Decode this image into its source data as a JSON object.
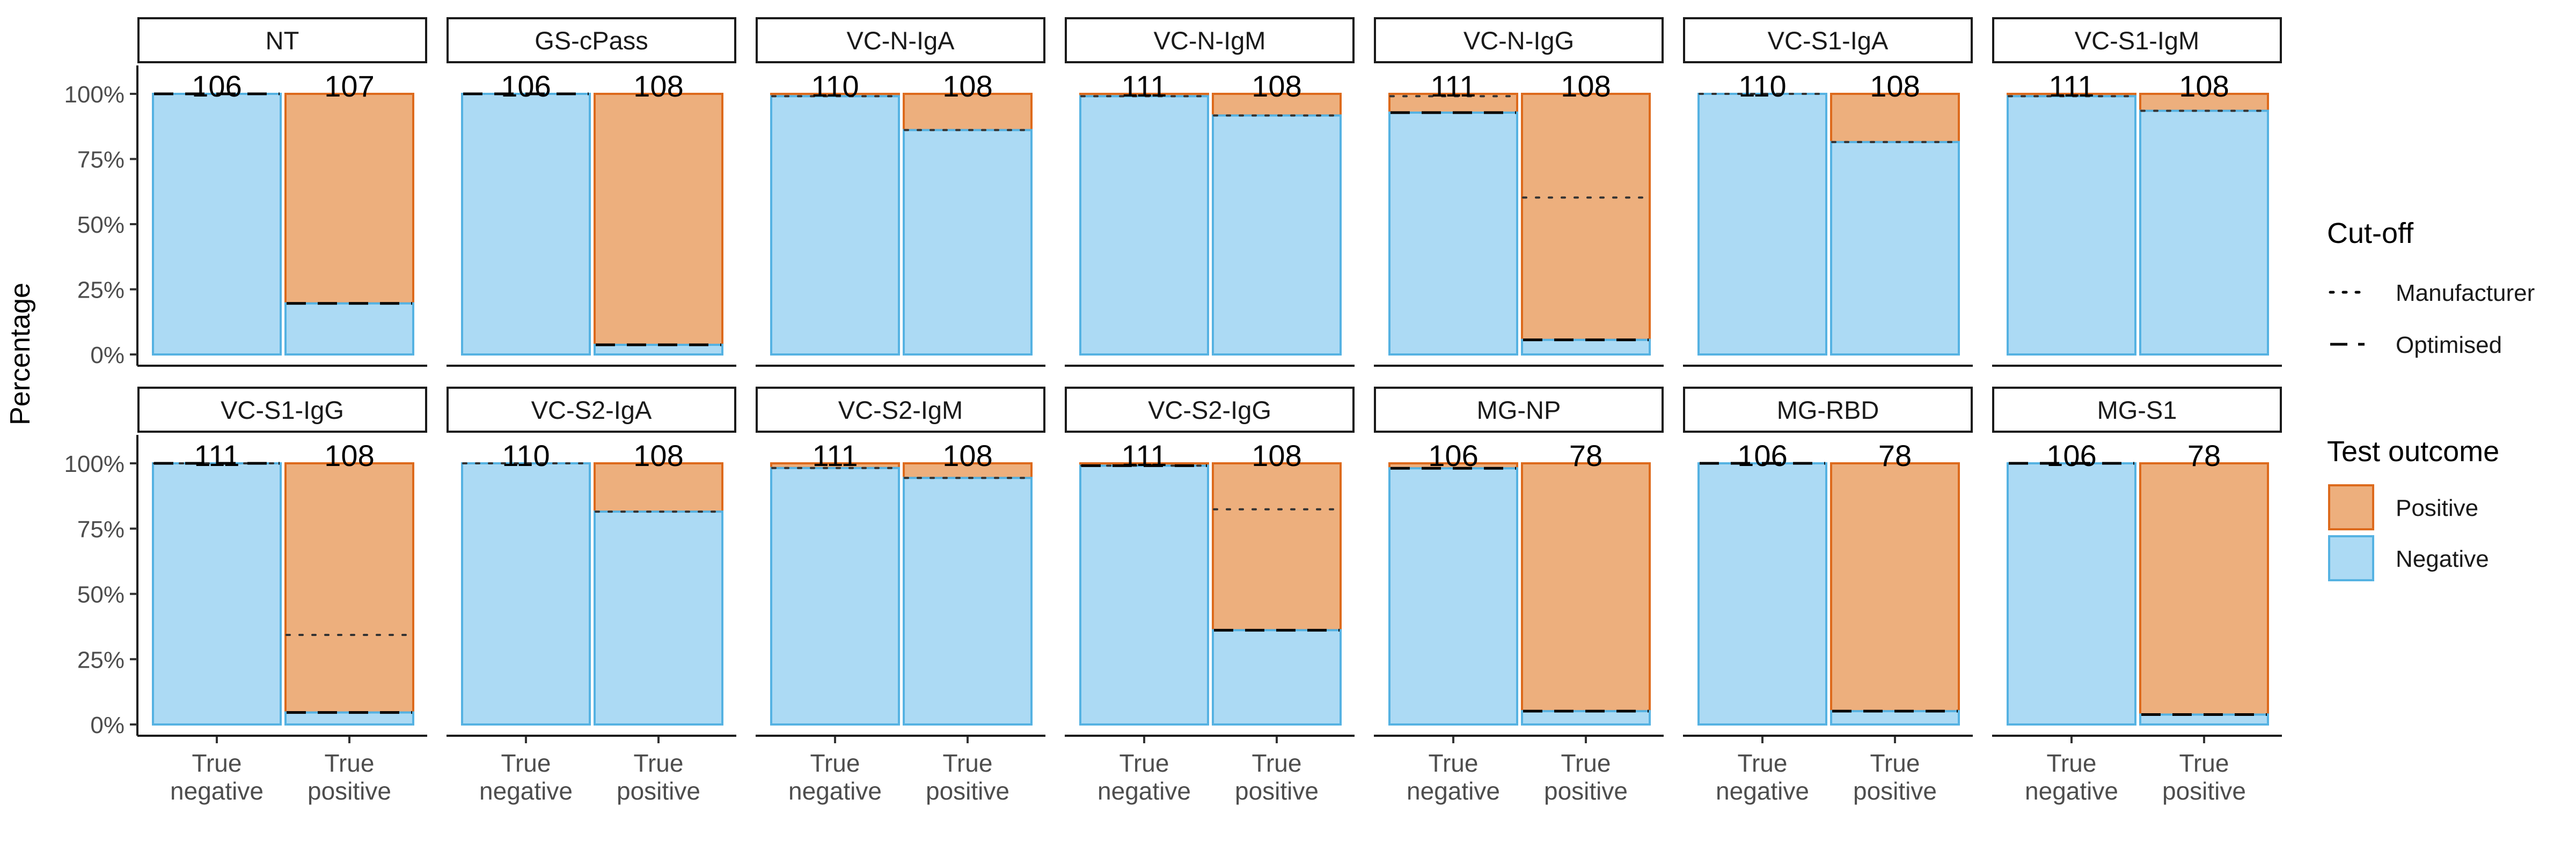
{
  "chart_data": {
    "type": "bar",
    "subtype": "stacked-percent-faceted",
    "ylabel": "Percentage",
    "y_ticks": [
      "0%",
      "25%",
      "50%",
      "75%",
      "100%"
    ],
    "ylim": [
      0,
      100
    ],
    "categories": [
      "True\nnegative",
      "True\npositive"
    ],
    "legend": {
      "position": "right",
      "cutoff_title": "Cut-off",
      "cutoff_items": [
        {
          "label": "Manufacturer",
          "style": "dotted"
        },
        {
          "label": "Optimised",
          "style": "dashed"
        }
      ],
      "outcome_title": "Test outcome",
      "outcome_items": [
        {
          "label": "Positive",
          "fill": "#edaf7d",
          "stroke": "#dd6a1c"
        },
        {
          "label": "Negative",
          "fill": "#acdaf4",
          "stroke": "#55b2e2"
        }
      ]
    },
    "panels": [
      {
        "name": "NT",
        "bars": [
          {
            "n": "106",
            "negative_pct": 100,
            "manufacturer": null,
            "optimised": 100
          },
          {
            "n": "107",
            "negative_pct": 19.6,
            "manufacturer": null,
            "optimised": 19.6
          }
        ]
      },
      {
        "name": "GS-cPass",
        "bars": [
          {
            "n": "106",
            "negative_pct": 100,
            "manufacturer": null,
            "optimised": 100
          },
          {
            "n": "108",
            "negative_pct": 3.7,
            "manufacturer": null,
            "optimised": 3.7
          }
        ]
      },
      {
        "name": "VC-N-IgA",
        "bars": [
          {
            "n": "110",
            "negative_pct": 99.1,
            "manufacturer": 99.1,
            "optimised": null
          },
          {
            "n": "108",
            "negative_pct": 86.1,
            "manufacturer": 86.1,
            "optimised": null
          }
        ]
      },
      {
        "name": "VC-N-IgM",
        "bars": [
          {
            "n": "111",
            "negative_pct": 99.1,
            "manufacturer": 99.1,
            "optimised": null
          },
          {
            "n": "108",
            "negative_pct": 91.7,
            "manufacturer": 91.7,
            "optimised": null
          }
        ]
      },
      {
        "name": "VC-N-IgG",
        "bars": [
          {
            "n": "111",
            "negative_pct": 92.8,
            "manufacturer": 99.1,
            "optimised": 92.8
          },
          {
            "n": "108",
            "negative_pct": 5.6,
            "manufacturer": 60.2,
            "optimised": 5.6
          }
        ]
      },
      {
        "name": "VC-S1-IgA",
        "bars": [
          {
            "n": "110",
            "negative_pct": 100,
            "manufacturer": 100,
            "optimised": null
          },
          {
            "n": "108",
            "negative_pct": 81.5,
            "manufacturer": 81.5,
            "optimised": null
          }
        ]
      },
      {
        "name": "VC-S1-IgM",
        "bars": [
          {
            "n": "111",
            "negative_pct": 99.1,
            "manufacturer": 99.1,
            "optimised": null
          },
          {
            "n": "108",
            "negative_pct": 93.5,
            "manufacturer": 93.5,
            "optimised": null
          }
        ]
      },
      {
        "name": "VC-S1-IgG",
        "bars": [
          {
            "n": "111",
            "negative_pct": 100,
            "manufacturer": 100,
            "optimised": 100
          },
          {
            "n": "108",
            "negative_pct": 4.6,
            "manufacturer": 34.3,
            "optimised": 4.6
          }
        ]
      },
      {
        "name": "VC-S2-IgA",
        "bars": [
          {
            "n": "110",
            "negative_pct": 100,
            "manufacturer": 100,
            "optimised": null
          },
          {
            "n": "108",
            "negative_pct": 81.5,
            "manufacturer": 81.5,
            "optimised": null
          }
        ]
      },
      {
        "name": "VC-S2-IgM",
        "bars": [
          {
            "n": "111",
            "negative_pct": 98.2,
            "manufacturer": 98.2,
            "optimised": null
          },
          {
            "n": "108",
            "negative_pct": 94.4,
            "manufacturer": 94.4,
            "optimised": null
          }
        ]
      },
      {
        "name": "VC-S2-IgG",
        "bars": [
          {
            "n": "111",
            "negative_pct": 99.1,
            "manufacturer": 99.1,
            "optimised": 99.1
          },
          {
            "n": "108",
            "negative_pct": 36.1,
            "manufacturer": 82.4,
            "optimised": 36.1
          }
        ]
      },
      {
        "name": "MG-NP",
        "bars": [
          {
            "n": "106",
            "negative_pct": 98.1,
            "manufacturer": null,
            "optimised": 98.1
          },
          {
            "n": "78",
            "negative_pct": 5.1,
            "manufacturer": null,
            "optimised": 5.1
          }
        ]
      },
      {
        "name": "MG-RBD",
        "bars": [
          {
            "n": "106",
            "negative_pct": 100,
            "manufacturer": null,
            "optimised": 100
          },
          {
            "n": "78",
            "negative_pct": 5.1,
            "manufacturer": null,
            "optimised": 5.1
          }
        ]
      },
      {
        "name": "MG-S1",
        "bars": [
          {
            "n": "106",
            "negative_pct": 100,
            "manufacturer": null,
            "optimised": 100
          },
          {
            "n": "78",
            "negative_pct": 3.8,
            "manufacturer": null,
            "optimised": 3.8
          }
        ]
      }
    ]
  }
}
